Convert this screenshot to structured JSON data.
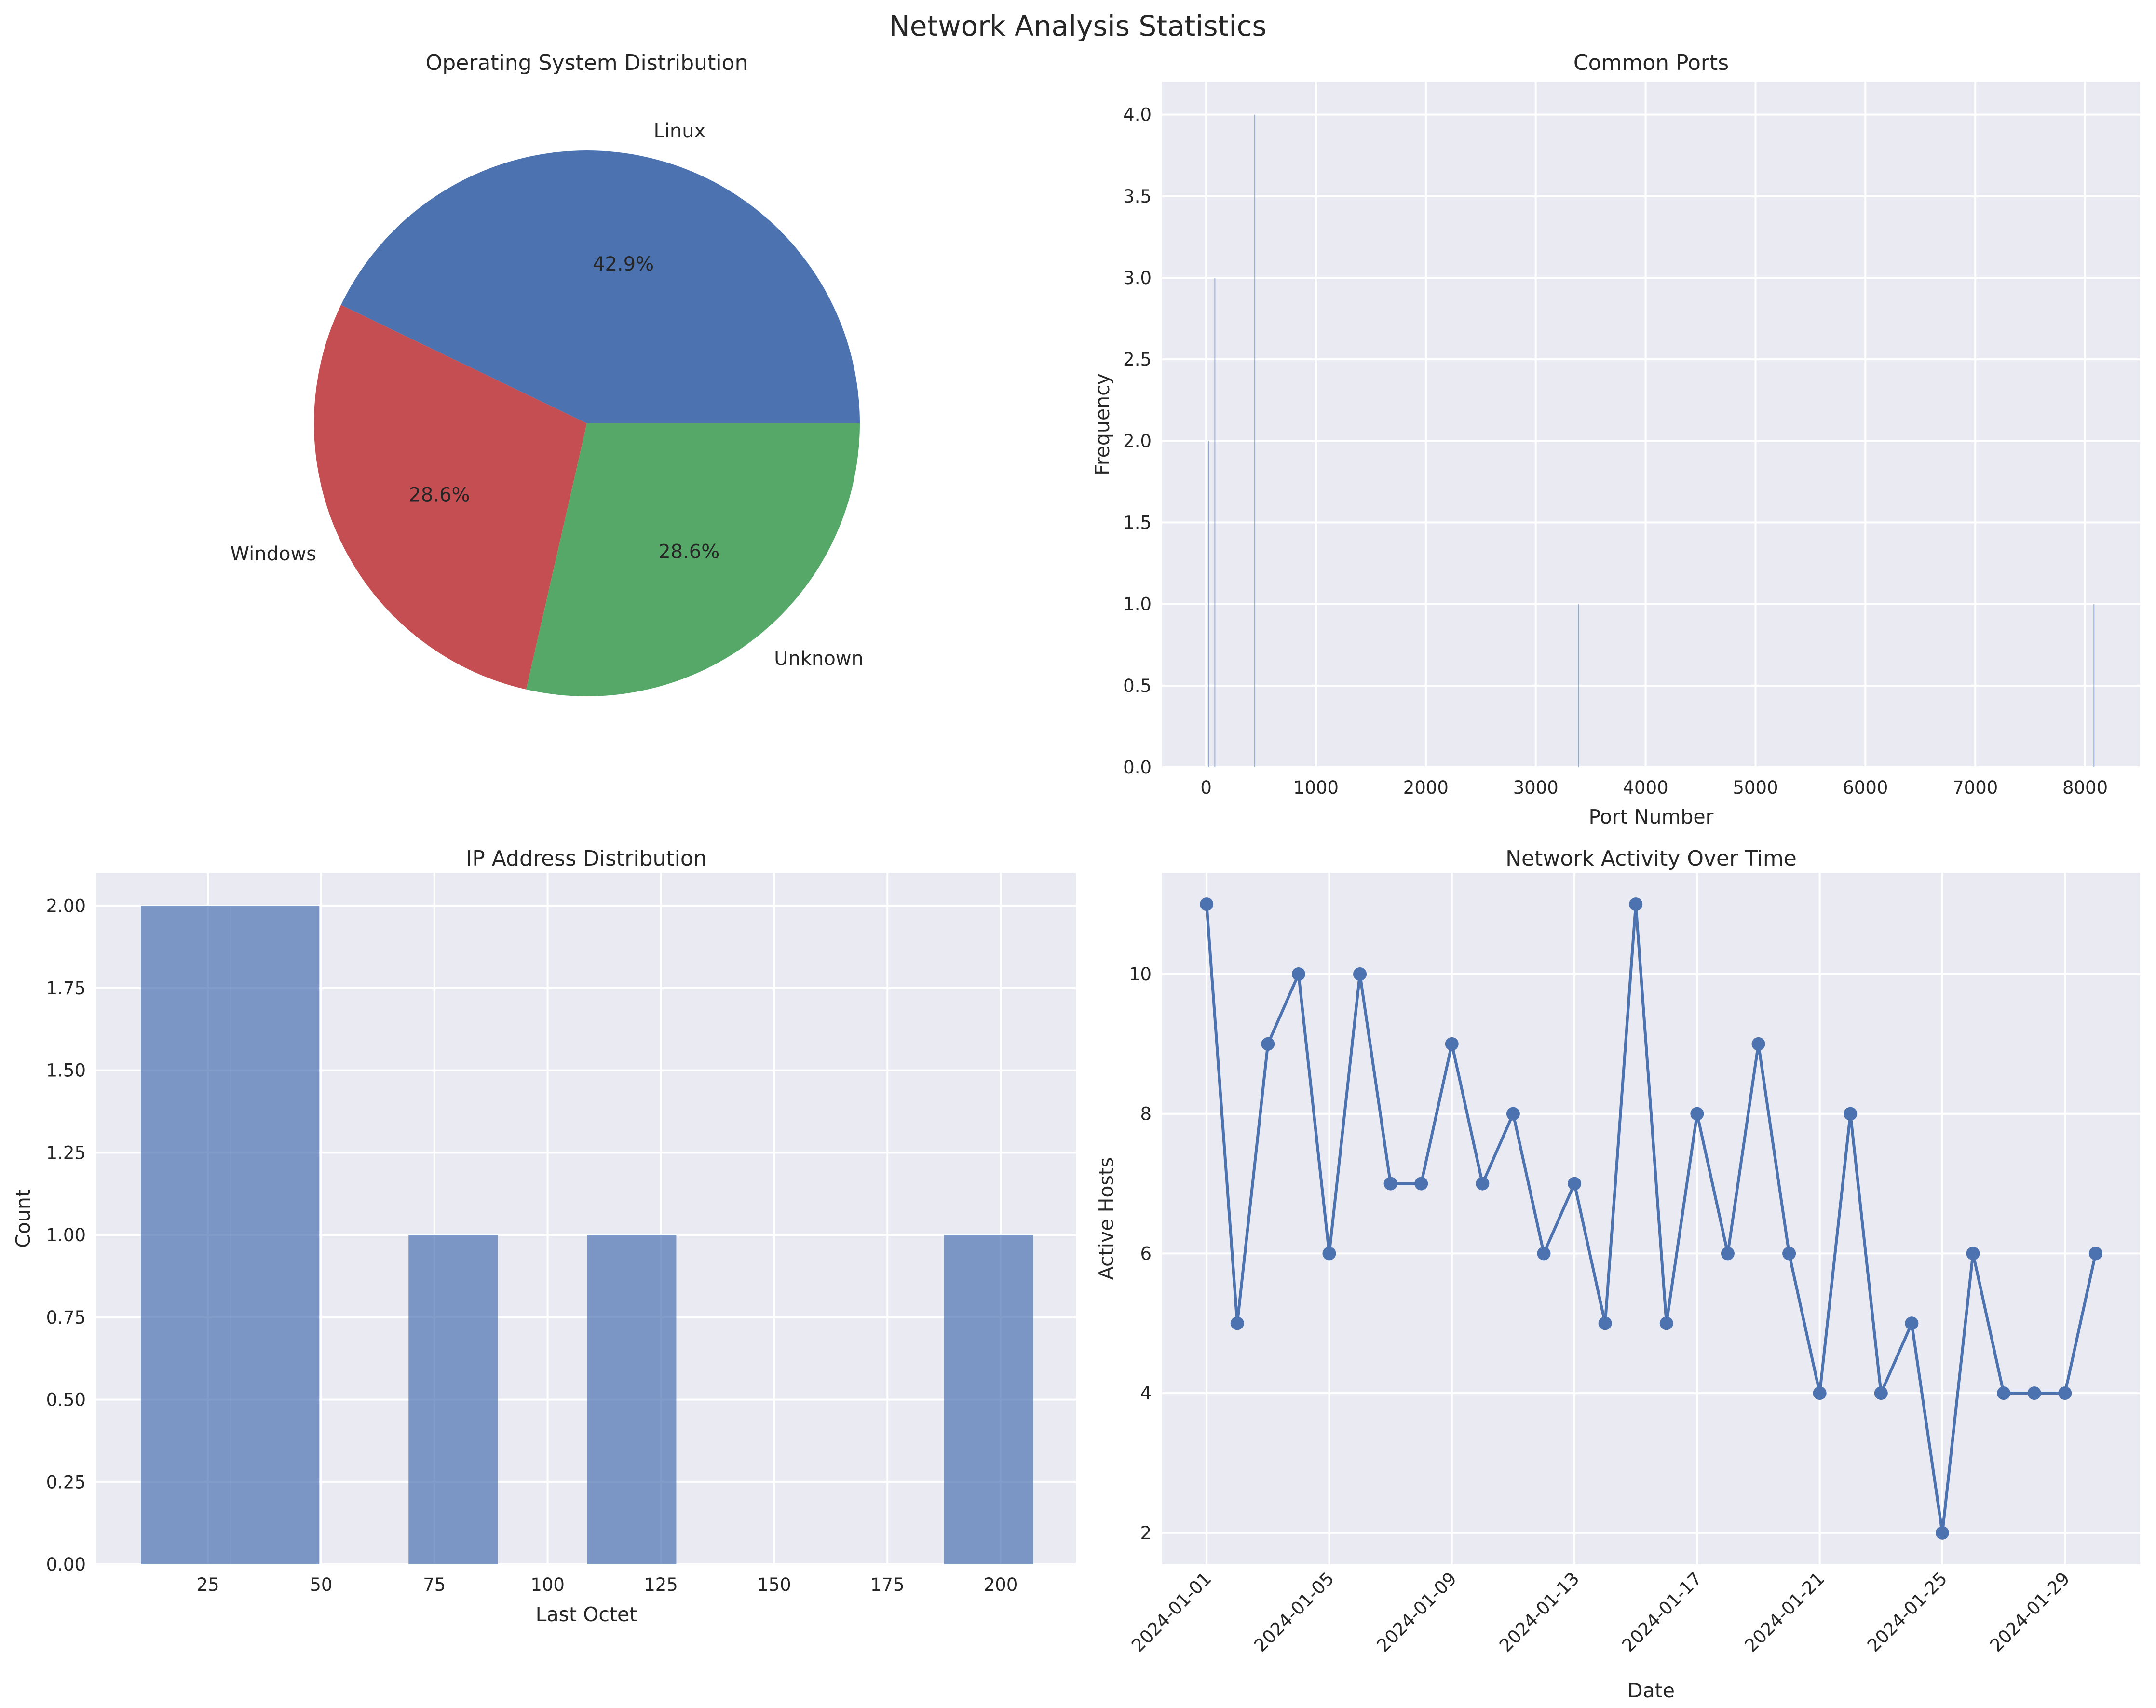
{
  "title": "Network Analysis Statistics",
  "colors": {
    "panel": "#eaeaf2",
    "blue": "#4c72b0",
    "green": "#55a868",
    "red": "#c44e52",
    "bar": "#7b96c2"
  },
  "chart_data": [
    {
      "id": "os",
      "type": "pie",
      "title": "Operating System Distribution",
      "labels": [
        "Linux",
        "Windows",
        "Unknown"
      ],
      "values": [
        42.9,
        28.6,
        28.6
      ],
      "percent_labels": [
        "42.9%",
        "28.6%",
        "28.6%"
      ]
    },
    {
      "id": "ports",
      "type": "bar",
      "title": "Common Ports",
      "xlabel": "Port Number",
      "ylabel": "Frequency",
      "xlim": [
        -400,
        8500
      ],
      "ylim": [
        0,
        4.2
      ],
      "xticks": [
        0,
        1000,
        2000,
        3000,
        4000,
        5000,
        6000,
        7000,
        8000
      ],
      "xtick_labels": [
        "0",
        "1000",
        "2000",
        "3000",
        "4000",
        "5000",
        "6000",
        "7000",
        "8000"
      ],
      "yticks": [
        0,
        0.5,
        1,
        1.5,
        2,
        2.5,
        3,
        3.5,
        4
      ],
      "ytick_labels": [
        "0.0",
        "0.5",
        "1.0",
        "1.5",
        "2.0",
        "2.5",
        "3.0",
        "3.5",
        "4.0"
      ],
      "bars": [
        {
          "x": 80,
          "value": 3
        },
        {
          "x": 443,
          "value": 4
        },
        {
          "x": 22,
          "value": 2
        },
        {
          "x": 3389,
          "value": 1
        },
        {
          "x": 8080,
          "value": 1
        }
      ]
    },
    {
      "id": "ip",
      "type": "bar",
      "title": "IP Address Distribution",
      "xlabel": "Last Octet",
      "ylabel": "Count",
      "xlim": [
        0.4,
        216.6
      ],
      "ylim": [
        0,
        2.1
      ],
      "xticks": [
        25,
        50,
        75,
        100,
        125,
        150,
        175,
        200
      ],
      "xtick_labels": [
        "25",
        "50",
        "75",
        "100",
        "125",
        "150",
        "175",
        "200"
      ],
      "yticks": [
        0,
        0.25,
        0.5,
        0.75,
        1,
        1.25,
        1.5,
        1.75,
        2
      ],
      "ytick_labels": [
        "0.00",
        "0.25",
        "0.50",
        "0.75",
        "1.00",
        "1.25",
        "1.50",
        "1.75",
        "2.00"
      ],
      "bins": [
        {
          "start": 10.2,
          "end": 29.9,
          "value": 2
        },
        {
          "start": 29.9,
          "end": 49.6,
          "value": 2
        },
        {
          "start": 69.3,
          "end": 89.0,
          "value": 1
        },
        {
          "start": 108.7,
          "end": 128.4,
          "value": 1
        },
        {
          "start": 187.5,
          "end": 207.2,
          "value": 1
        }
      ]
    },
    {
      "id": "activity",
      "type": "line",
      "title": "Network Activity Over Time",
      "xlabel": "Date",
      "ylabel": "Active Hosts",
      "xlim": [
        -1.45,
        30.45
      ],
      "ylim": [
        1.55,
        11.45
      ],
      "yticks": [
        2,
        4,
        6,
        8,
        10
      ],
      "ytick_labels": [
        "2",
        "4",
        "6",
        "8",
        "10"
      ],
      "xtick_positions": [
        0,
        4,
        8,
        12,
        16,
        20,
        24,
        28
      ],
      "xtick_labels": [
        "2024-01-01",
        "2024-01-05",
        "2024-01-09",
        "2024-01-13",
        "2024-01-17",
        "2024-01-21",
        "2024-01-25",
        "2024-01-29"
      ],
      "values": [
        11,
        5,
        9,
        10,
        6,
        10,
        7,
        7,
        9,
        7,
        8,
        6,
        7,
        5,
        11,
        5,
        8,
        6,
        9,
        6,
        4,
        8,
        4,
        5,
        2,
        6,
        4,
        4,
        4,
        6
      ]
    }
  ]
}
